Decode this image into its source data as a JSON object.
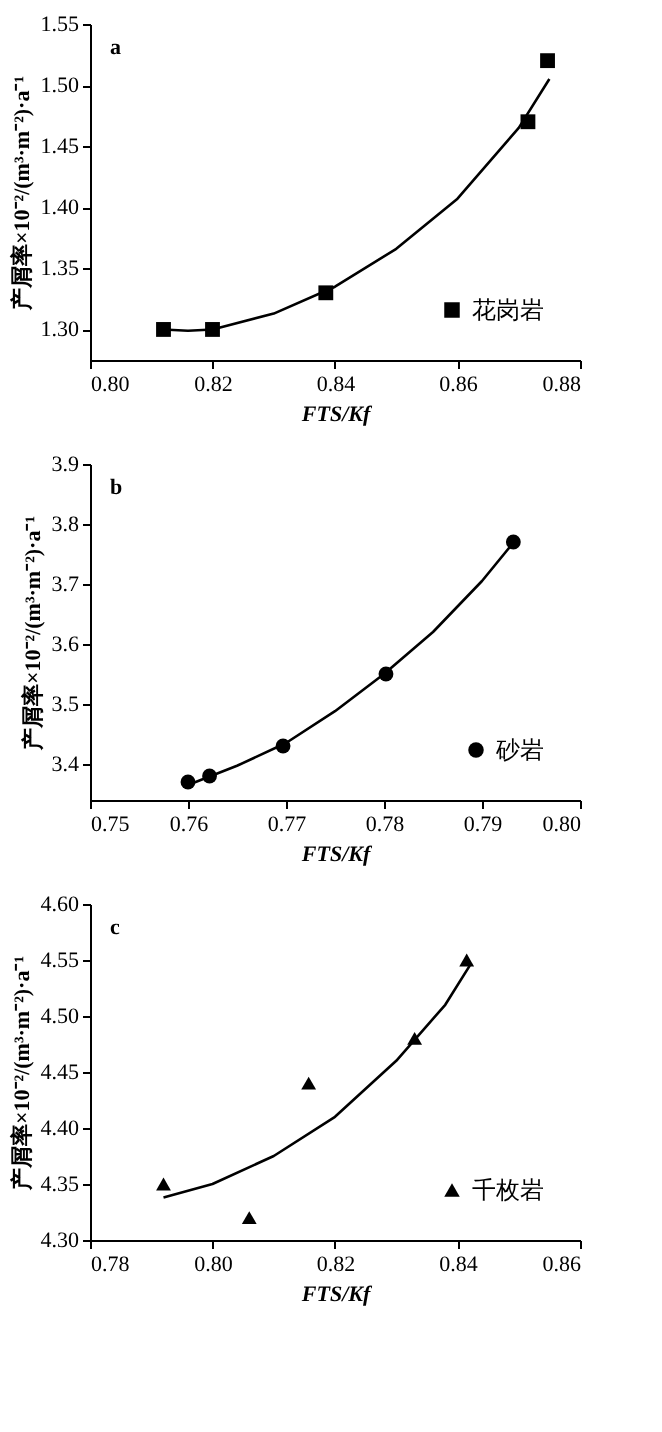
{
  "chart_data": [
    {
      "type": "scatter",
      "xlabel": "FTS/Kf",
      "ylabel": "产屑率×10⁻²/(m³·m⁻²)·a⁻¹",
      "annotations": [
        "a"
      ],
      "grid": false,
      "legend": "bottom right",
      "xlim": [
        0.8,
        0.88
      ],
      "xticks": [
        {
          "value": 0.8,
          "label": "0.80"
        },
        {
          "value": 0.82,
          "label": "0.82"
        },
        {
          "value": 0.84,
          "label": "0.84"
        },
        {
          "value": 0.86,
          "label": "0.86"
        },
        {
          "value": 0.88,
          "label": "0.88"
        }
      ],
      "ylim": [
        1.275,
        1.55
      ],
      "yticks": [
        {
          "value": 1.3,
          "label": "1.30"
        },
        {
          "value": 1.35,
          "label": "1.35"
        },
        {
          "value": 1.4,
          "label": "1.40"
        },
        {
          "value": 1.45,
          "label": "1.45"
        },
        {
          "value": 1.5,
          "label": "1.50"
        },
        {
          "value": 1.55,
          "label": "1.55"
        }
      ],
      "series": [
        {
          "name": "花岗岩",
          "type": "scatter",
          "marker": "square",
          "color": "#000000",
          "x": [
            0.812,
            0.82,
            0.8385,
            0.8715,
            0.8747
          ],
          "values": [
            1.3,
            1.3,
            1.33,
            1.47,
            1.52
          ]
        },
        {
          "type": "line",
          "color": "#000000",
          "x": [
            0.812,
            0.816,
            0.82,
            0.83,
            0.84,
            0.85,
            0.86,
            0.87,
            0.875
          ],
          "values": [
            1.3,
            1.299,
            1.3,
            1.313,
            1.335,
            1.366,
            1.407,
            1.465,
            1.505
          ]
        }
      ]
    },
    {
      "type": "scatter",
      "xlabel": "FTS/Kf",
      "ylabel": "产屑率×10⁻²/(m³·m⁻²)·a⁻¹",
      "annotations": [
        "b"
      ],
      "grid": false,
      "legend": "bottom right",
      "xlim": [
        0.75,
        0.8
      ],
      "xticks": [
        {
          "value": 0.75,
          "label": "0.75"
        },
        {
          "value": 0.76,
          "label": "0.76"
        },
        {
          "value": 0.77,
          "label": "0.77"
        },
        {
          "value": 0.78,
          "label": "0.78"
        },
        {
          "value": 0.79,
          "label": "0.79"
        },
        {
          "value": 0.8,
          "label": "0.80"
        }
      ],
      "ylim": [
        3.34,
        3.9
      ],
      "yticks": [
        3.4,
        3.5,
        3.6,
        3.7,
        3.8,
        3.9
      ],
      "series": [
        {
          "name": "砂岩",
          "type": "scatter",
          "marker": "circle",
          "color": "#000000",
          "x": [
            0.76,
            0.7622,
            0.7697,
            0.7802,
            0.7932
          ],
          "values": [
            3.37,
            3.38,
            3.43,
            3.55,
            3.77
          ]
        },
        {
          "type": "line",
          "color": "#000000",
          "x": [
            0.76,
            0.765,
            0.77,
            0.775,
            0.78,
            0.785,
            0.79,
            0.793
          ],
          "values": [
            3.365,
            3.397,
            3.435,
            3.488,
            3.55,
            3.62,
            3.705,
            3.765
          ]
        }
      ]
    },
    {
      "type": "scatter",
      "xlabel": "FTS/Kf",
      "ylabel": "产屑率×10⁻²/(m³·m⁻²)·a⁻¹",
      "annotations": [
        "c"
      ],
      "grid": false,
      "legend": "bottom right",
      "xlim": [
        0.78,
        0.86
      ],
      "xticks": [
        {
          "value": 0.78,
          "label": "0.78"
        },
        {
          "value": 0.8,
          "label": "0.80"
        },
        {
          "value": 0.82,
          "label": "0.82"
        },
        {
          "value": 0.84,
          "label": "0.84"
        },
        {
          "value": 0.86,
          "label": "0.86"
        }
      ],
      "ylim": [
        4.3,
        4.6
      ],
      "yticks": [
        {
          "value": 4.3,
          "label": "4.30"
        },
        {
          "value": 4.35,
          "label": "4.35"
        },
        {
          "value": 4.4,
          "label": "4.40"
        },
        {
          "value": 4.45,
          "label": "4.45"
        },
        {
          "value": 4.5,
          "label": "4.50"
        },
        {
          "value": 4.55,
          "label": "4.55"
        },
        {
          "value": 4.6,
          "label": "4.60"
        }
      ],
      "series": [
        {
          "name": "千枚岩",
          "type": "scatter",
          "marker": "triangle",
          "color": "#000000",
          "x": [
            0.792,
            0.806,
            0.8157,
            0.833,
            0.8415
          ],
          "values": [
            4.35,
            4.32,
            4.44,
            4.48,
            4.55
          ]
        },
        {
          "type": "line",
          "color": "#000000",
          "x": [
            0.792,
            0.8,
            0.81,
            0.82,
            0.83,
            0.838,
            0.842
          ],
          "values": [
            4.338,
            4.35,
            4.375,
            4.41,
            4.46,
            4.51,
            4.545
          ]
        }
      ]
    }
  ]
}
